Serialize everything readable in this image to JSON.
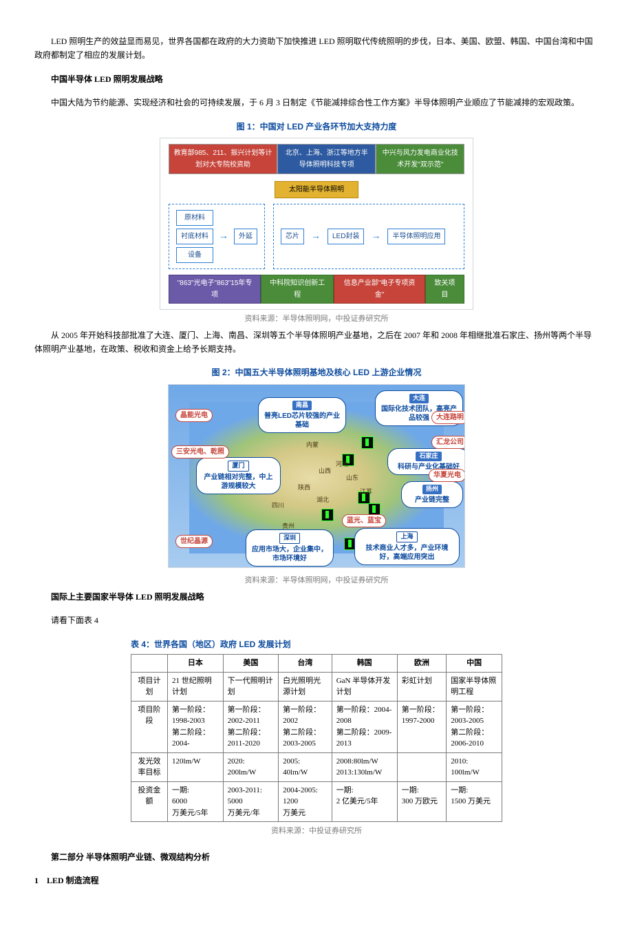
{
  "paragraphs": {
    "p1": "LED 照明生产的效益显而易见，世界各国都在政府的大力资助下加快推进 LED 照明取代传统照明的步伐，日本、美国、欧盟、韩国、中国台湾和中国政府都制定了相应的发展计划。",
    "h1": "中国半导体 LED 照明发展战略",
    "p2": "中国大陆为节约能源、实现经济和社会的可持续发展，于 6 月 3 日制定《节能减排综合性工作方案》半导体照明产业顺应了节能减排的宏观政策。",
    "p3": "从 2005 年开始科技部批准了大连、厦门、上海、南昌、深圳等五个半导体照明产业基地，之后在 2007 年和 2008 年相继批准石家庄、扬州等两个半导体照明产业基地，在政策、税收和资金上给予长期支持。",
    "h2": "国际上主要国家半导体 LED 照明发展战略",
    "p4": "请看下面表 4",
    "h3": "第二部分 半导体照明产业链、微观结构分析",
    "h4": "1　LED 制造流程"
  },
  "fig1": {
    "title": "图 1：中国对 LED 产业各环节加大支持力度",
    "top_red": "教育部985、211、振兴计划等计划对大专院校资助",
    "top_blue": "北京、上海、浙江等地方半导体照明科技专项",
    "top_green": "中兴与风力发电商业化技术开发\"双示范\"",
    "sun": "太阳能半导体照明",
    "left": {
      "a": "原材料",
      "b": "衬底材料",
      "c": "设备",
      "d": "外延"
    },
    "right": {
      "a": "芯片",
      "b": "LED封装",
      "c": "半导体照明应用"
    },
    "bot_purple": "\"863\"光电子\"863\"15年专项",
    "bot_green": "中科院知识创新工程",
    "bot_red": "信息产业部\"电子专项资金\"",
    "bot_green2": "致关项目",
    "source": "资料来源：半导体照明网，中投证券研究所"
  },
  "fig2": {
    "title": "图 2：中国五大半导体照明基地及核心 LED 上游企业情况",
    "source": "资料来源：半导体照明网，中投证券研究所",
    "bubbles": {
      "dalian": "大连\n国际化技术团队，高\n亮产品较强",
      "nanchang": "南昌\n普亮LED芯片较强\n的产业基础",
      "xiamen": "厦门\n产业链相对完整，\n中上游规模较大",
      "shenzhen": "深圳\n应用市场大，企业\n集中，市场环境好",
      "shanghai": "上海\n技术商业人才多，产业\n环境好，高端应用突出",
      "shijiazhuang": "石家庄\n科研与产业化基础好",
      "yangzhou": "扬州\n产业链完整"
    },
    "companies": {
      "jingneng": "晶能光电",
      "sanan": "三安光电、乾照",
      "shiji": "世纪晶源",
      "dalianlm": "大连路明",
      "huilong": "汇龙公司",
      "huaxia": "华夏光电",
      "languang": "蓝光、蓝宝"
    },
    "provinces": {
      "neimeng": "内蒙",
      "hebei": "河北",
      "shanxi": "山西",
      "shaanxi": "陕西",
      "sichuan": "四川",
      "hubei": "湖北",
      "shandong": "山东",
      "jiangsu": "江苏",
      "guizhou": "贵州"
    }
  },
  "table4": {
    "title": "表 4：世界各国（地区）政府 LED 发展计划",
    "headers": [
      "",
      "日本",
      "美国",
      "台湾",
      "韩国",
      "欧洲",
      "中国"
    ],
    "rows": [
      [
        "项目计划",
        "21 世纪照明计划",
        "下一代照明计划",
        "白光照明光源计划",
        "GaN 半导体开发计划",
        "彩虹计划",
        "国家半导体照明工程"
      ],
      [
        "项目阶段",
        "第一阶段：1998-2003\n第二阶段：2004-",
        "第一阶段：2002-2011\n第二阶段：2011-2020",
        "第一阶段：2002\n第二阶段：2003-2005",
        "第一阶段：2004-2008\n第二阶段：2009-2013",
        "第一阶段：1997-2000",
        "第一阶段：2003-2005\n第二阶段：2006-2010"
      ],
      [
        "发光效率目标",
        "120lm/W",
        "2020:\n200lm/W",
        "2005:\n40lm/W",
        "2008:80lm/W\n2013:130lm/W",
        "",
        "2010:\n100lm/W"
      ],
      [
        "投资金额",
        "一期:\n6000\n万美元/5年",
        "2003-2011:\n5000\n万美元/年",
        "2004-2005:\n1200\n万美元",
        "一期:\n2 亿美元/5年",
        "一期:\n300 万欧元",
        "一期:\n1500 万美元"
      ]
    ],
    "source": "资料来源：中投证券研究所"
  },
  "colors": {
    "title": "#0b4a9e",
    "dash": "#2a7fd4",
    "red": "#c6443a",
    "green": "#4a8c3a",
    "purple": "#6b5aa8",
    "sun": "#e2b230"
  }
}
